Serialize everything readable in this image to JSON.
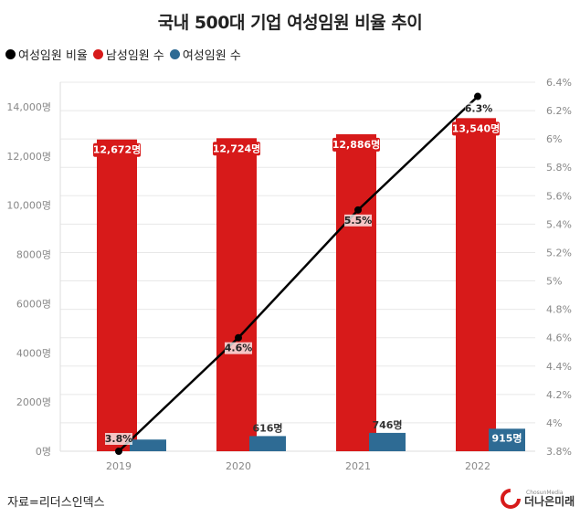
{
  "title": "국내 500대 기업 여성임원 비율 추이",
  "legend": [
    {
      "label": "여성임원 비율",
      "color": "#000000"
    },
    {
      "label": "남성임원 수",
      "color": "#d71a1a"
    },
    {
      "label": "여성임원 수",
      "color": "#2e6b94"
    }
  ],
  "source": "자료=리더스인덱스",
  "logo": {
    "small": "ChosunMedia",
    "main": "더나은미래"
  },
  "colors": {
    "male": "#d71a1a",
    "female": "#2e6b94",
    "line": "#000000",
    "grid": "#e8e8e8"
  },
  "chart_data": {
    "type": "bar+line",
    "categories": [
      "2019",
      "2020",
      "2021",
      "2022"
    ],
    "series": [
      {
        "name": "남성임원 수",
        "type": "bar",
        "axis": "left",
        "values": [
          12672,
          12724,
          12886,
          13540
        ],
        "labels": [
          "12,672명",
          "12,724명",
          "12,886명",
          "13,540명"
        ]
      },
      {
        "name": "여성임원 수",
        "type": "bar",
        "axis": "left",
        "values": [
          475,
          616,
          746,
          915
        ],
        "labels": [
          "",
          "616명",
          "746명",
          "915명"
        ]
      },
      {
        "name": "여성임원 비율",
        "type": "line",
        "axis": "right",
        "values": [
          3.8,
          4.6,
          5.5,
          6.3
        ],
        "labels": [
          "3.8%",
          "4.6%",
          "5.5%",
          "6.3%"
        ]
      }
    ],
    "left_axis": {
      "ylim": [
        0,
        15000
      ],
      "ticks": [
        0,
        2000,
        4000,
        6000,
        8000,
        10000,
        12000,
        14000
      ],
      "tick_labels": [
        "0명",
        "2000명",
        "4000명",
        "6000명",
        "8000명",
        "10,000명",
        "12,000명",
        "14,000명"
      ]
    },
    "right_axis": {
      "ylim": [
        3.8,
        6.4
      ],
      "ticks": [
        3.8,
        4.0,
        4.2,
        4.4,
        4.6,
        4.8,
        5.0,
        5.2,
        5.4,
        5.6,
        5.8,
        6.0,
        6.2,
        6.4
      ],
      "tick_labels": [
        "3.8%",
        "4%",
        "4.2%",
        "4.4%",
        "4.6%",
        "4.8%",
        "5%",
        "5.2%",
        "5.4%",
        "5.6%",
        "5.8%",
        "6%",
        "6.2%",
        "6.4%"
      ]
    },
    "grid": true
  }
}
